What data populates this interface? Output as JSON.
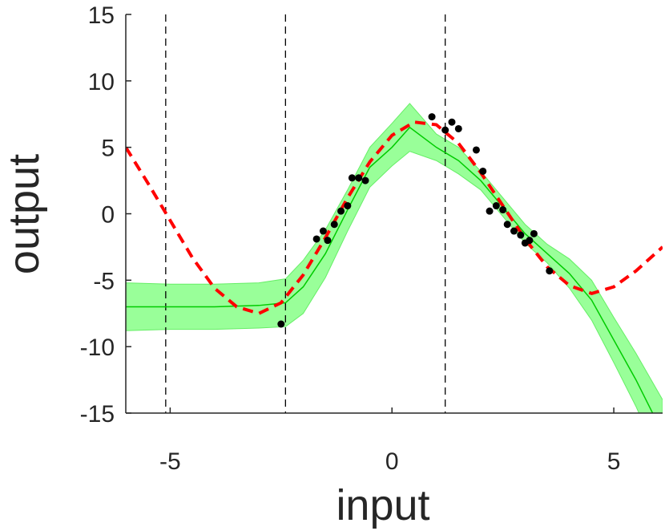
{
  "chart_data": {
    "type": "line",
    "title": "",
    "xlabel": "input",
    "ylabel": "output",
    "xlim": [
      -6,
      6.1
    ],
    "ylim": [
      -15,
      15
    ],
    "xticks": [
      -5,
      0,
      5
    ],
    "yticks": [
      -15,
      -10,
      -5,
      0,
      5,
      10,
      15
    ],
    "grid": false,
    "legend": "none",
    "vlines": [
      -5.1,
      -2.4,
      1.2
    ],
    "colors": {
      "true_function": "#ff0000",
      "mean": "#00cc00",
      "band_fill": "#99ff99",
      "points": "#000000",
      "vlines": "#000000",
      "axis": "#262626"
    },
    "series": [
      {
        "kind": "dashed-line",
        "x": [
          -6.0,
          -5.5,
          -5.0,
          -4.5,
          -4.0,
          -3.5,
          -3.0,
          -2.5,
          -2.0,
          -1.5,
          -1.0,
          -0.5,
          0.0,
          0.5,
          1.0,
          1.5,
          2.0,
          2.5,
          3.0,
          3.5,
          4.0,
          4.5,
          5.0,
          5.5,
          6.1
        ],
        "y": [
          5.0,
          2.3,
          -0.5,
          -3.3,
          -5.6,
          -7.0,
          -7.5,
          -6.7,
          -4.6,
          -1.8,
          1.2,
          3.9,
          5.9,
          6.9,
          6.7,
          5.3,
          3.1,
          0.6,
          -1.9,
          -4.0,
          -5.4,
          -6.0,
          -5.5,
          -4.3,
          -2.5
        ]
      },
      {
        "kind": "mean-line",
        "x": [
          -6.0,
          -5.0,
          -4.0,
          -3.0,
          -2.4,
          -2.0,
          -1.5,
          -1.0,
          -0.5,
          0.0,
          0.4,
          1.0,
          1.5,
          2.0,
          2.5,
          3.0,
          3.5,
          4.0,
          4.5,
          5.0,
          5.5,
          6.1
        ],
        "y": [
          -7.0,
          -7.0,
          -7.0,
          -6.9,
          -6.7,
          -5.5,
          -3.0,
          0.3,
          3.5,
          5.0,
          6.5,
          5.0,
          4.0,
          2.5,
          0.5,
          -1.5,
          -3.0,
          -4.5,
          -6.5,
          -9.5,
          -12.5,
          -16.5
        ]
      },
      {
        "kind": "band",
        "x": [
          -6.0,
          -5.0,
          -4.0,
          -3.0,
          -2.4,
          -2.0,
          -1.5,
          -1.0,
          -0.5,
          0.0,
          0.4,
          1.0,
          1.5,
          2.0,
          2.5,
          3.0,
          3.5,
          4.0,
          4.5,
          5.0,
          5.5,
          6.1
        ],
        "upper": [
          -5.2,
          -5.3,
          -5.3,
          -5.2,
          -4.9,
          -3.5,
          -1.2,
          1.8,
          5.0,
          6.8,
          8.3,
          6.0,
          5.0,
          3.2,
          1.2,
          -0.8,
          -2.3,
          -3.4,
          -5.0,
          -7.8,
          -10.5,
          -14.0
        ],
        "lower": [
          -8.8,
          -8.7,
          -8.7,
          -8.6,
          -8.5,
          -7.5,
          -4.8,
          -1.3,
          2.0,
          3.6,
          4.7,
          4.0,
          3.0,
          1.8,
          -0.2,
          -2.2,
          -3.7,
          -5.6,
          -8.0,
          -11.2,
          -14.5,
          -19.0
        ]
      },
      {
        "kind": "points",
        "x": [
          -2.5,
          -1.7,
          -1.55,
          -1.45,
          -1.3,
          -1.15,
          -1.0,
          -0.9,
          -0.75,
          -0.6,
          0.9,
          1.2,
          1.35,
          1.5,
          1.9,
          2.05,
          2.2,
          2.35,
          2.5,
          2.6,
          2.75,
          2.9,
          3.0,
          3.1,
          3.2,
          3.55
        ],
        "y": [
          -8.3,
          -1.9,
          -1.3,
          -2.0,
          -0.8,
          0.2,
          0.6,
          2.7,
          2.7,
          2.5,
          7.3,
          6.3,
          6.9,
          6.4,
          4.8,
          3.2,
          0.2,
          0.6,
          0.3,
          -0.8,
          -1.3,
          -1.6,
          -2.2,
          -2.0,
          -1.5,
          -4.3
        ]
      }
    ]
  }
}
